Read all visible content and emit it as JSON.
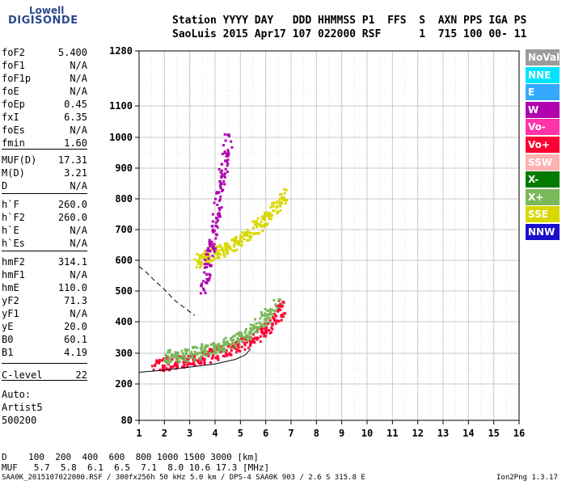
{
  "logo": {
    "line1": "Lowell",
    "line2": "DIGISONDE"
  },
  "header": {
    "line1": "Station YYYY DAY   DDD HHMMSS P1  FFS  S  AXN PPS IGA PS",
    "line2": "SaoLuis 2015 Apr17 107 022000 RSF      1  715 100 00- 11"
  },
  "params": [
    {
      "name": "foF2",
      "value": "5.400"
    },
    {
      "name": "foF1",
      "value": "N/A"
    },
    {
      "name": "foF1p",
      "value": "N/A"
    },
    {
      "name": "foE",
      "value": "N/A"
    },
    {
      "name": "foEp",
      "value": "0.45"
    },
    {
      "name": "fxI",
      "value": "6.35"
    },
    {
      "name": "foEs",
      "value": "N/A"
    },
    {
      "name": "fmin",
      "value": "1.60"
    },
    {
      "name": "MUF(D)",
      "value": "17.31"
    },
    {
      "name": "M(D)",
      "value": "3.21"
    },
    {
      "name": "D",
      "value": "N/A"
    },
    {
      "name": "h`F",
      "value": "260.0"
    },
    {
      "name": "h`F2",
      "value": "260.0"
    },
    {
      "name": "h`E",
      "value": "N/A"
    },
    {
      "name": "h`Es",
      "value": "N/A"
    },
    {
      "name": "hmF2",
      "value": "314.1"
    },
    {
      "name": "hmF1",
      "value": "N/A"
    },
    {
      "name": "hmE",
      "value": "110.0"
    },
    {
      "name": "yF2",
      "value": "71.3"
    },
    {
      "name": "yF1",
      "value": "N/A"
    },
    {
      "name": "yE",
      "value": "20.0"
    },
    {
      "name": "B0",
      "value": "60.1"
    },
    {
      "name": "B1",
      "value": "4.19"
    },
    {
      "name": "C-level",
      "value": "22"
    }
  ],
  "auto": {
    "label": "Auto:",
    "artist": "Artist5",
    "code": "500200"
  },
  "legend": [
    {
      "label": "NoVal",
      "color": "#9c9c9c"
    },
    {
      "label": "NNE",
      "color": "#00e5ff"
    },
    {
      "label": "E",
      "color": "#33aaff"
    },
    {
      "label": "W",
      "color": "#b000b0"
    },
    {
      "label": "Vo-",
      "color": "#ff33aa"
    },
    {
      "label": "Vo+",
      "color": "#ff0033"
    },
    {
      "label": "SSW",
      "color": "#ffb0b0"
    },
    {
      "label": "X-",
      "color": "#007a00"
    },
    {
      "label": "X+",
      "color": "#7ab85a"
    },
    {
      "label": "SSE",
      "color": "#d8d800"
    },
    {
      "label": "NNW",
      "color": "#1a10cc"
    }
  ],
  "bottom": {
    "d_row": "D    100  200  400  600  800 1000 1500 3000 [km]",
    "muf_row": "MUF   5.7  5.8  6.1  6.5  7.1  8.0 10.6 17.3 [MHz]"
  },
  "footer": {
    "left": "SAA0K_2015107022000.RSF / 300fx256h 50 kHz 5.0 km / DPS-4 SAA0K 903 / 2.6 S 315.8 E",
    "right": "Ion2Png 1.3.17"
  },
  "chart_data": {
    "type": "scatter",
    "x_ticks": [
      "1",
      "2",
      "3",
      "4",
      "5",
      "6",
      "7",
      "8",
      "9",
      "10",
      "11",
      "12",
      "13",
      "14",
      "15",
      "16"
    ],
    "y_ticks": [
      "80",
      "200",
      "300",
      "400",
      "500",
      "600",
      "700",
      "800",
      "900",
      "1000",
      "1100",
      "1280"
    ],
    "xlim": [
      1,
      16
    ],
    "ylim": [
      80,
      1280
    ],
    "grid": true,
    "legend_position": "right",
    "traces": [
      {
        "name": "SSE",
        "color": "#d8d800",
        "x": [
          3.2,
          3.6,
          4.0,
          4.4,
          4.8,
          5.2,
          5.6,
          6.0,
          6.4,
          6.8
        ],
        "y": [
          600,
          610,
          625,
          640,
          660,
          680,
          710,
          740,
          780,
          820
        ]
      },
      {
        "name": "Vo+",
        "color": "#ff0033",
        "x": [
          1.6,
          2.0,
          2.5,
          3.0,
          3.5,
          4.0,
          4.5,
          5.0,
          5.5,
          6.0,
          6.4,
          6.7
        ],
        "y": [
          265,
          268,
          275,
          280,
          290,
          300,
          315,
          330,
          350,
          380,
          420,
          470
        ]
      },
      {
        "name": "X+",
        "color": "#7ab85a",
        "x": [
          2.0,
          2.5,
          3.0,
          3.5,
          4.0,
          4.5,
          5.0,
          5.5,
          6.0,
          6.5
        ],
        "y": [
          290,
          295,
          300,
          310,
          320,
          335,
          355,
          380,
          420,
          470
        ]
      },
      {
        "name": "W",
        "color": "#b000b0",
        "x": [
          3.5,
          3.7,
          3.9,
          4.1,
          4.3,
          4.5
        ],
        "y": [
          500,
          600,
          700,
          800,
          900,
          1000
        ]
      }
    ],
    "profile": {
      "x": [
        1.0,
        2.0,
        3.0,
        4.0,
        4.8,
        5.2,
        5.4
      ],
      "y": [
        238,
        245,
        255,
        265,
        280,
        295,
        314
      ]
    },
    "dashed": {
      "x": [
        1.0,
        1.3,
        1.6,
        2.0,
        2.4,
        2.8,
        3.2
      ],
      "y": [
        580,
        560,
        535,
        505,
        470,
        445,
        420
      ]
    }
  }
}
